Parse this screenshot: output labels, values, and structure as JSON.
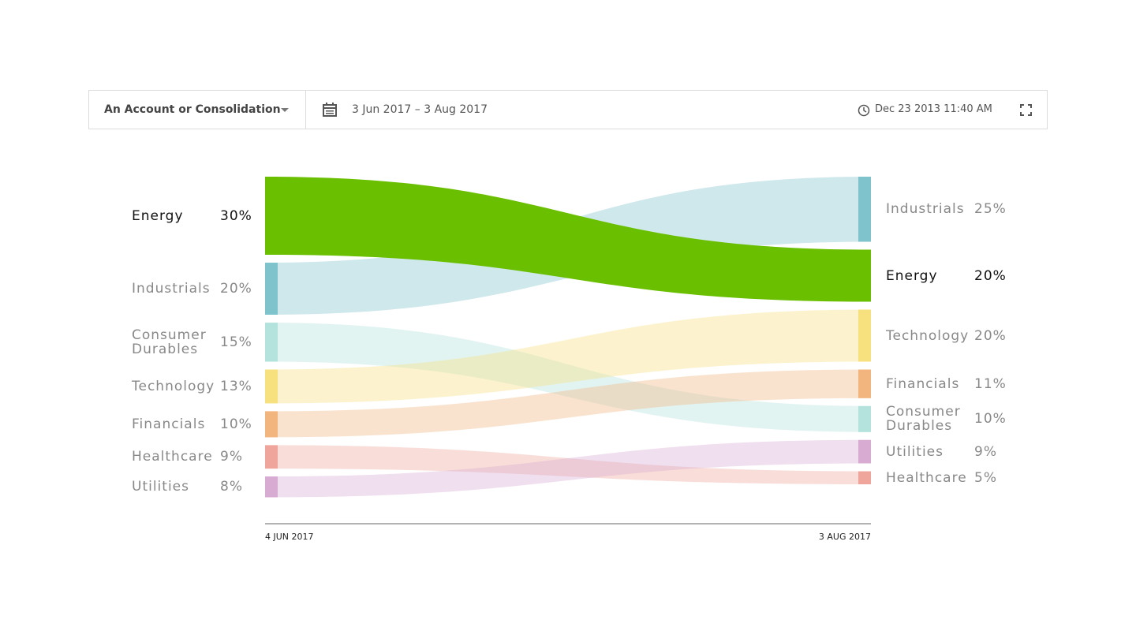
{
  "toolbar": {
    "account": "An Account or Consolidation",
    "date_range": "3 Jun 2017 – 3 Aug 2017",
    "timestamp": "Dec 23 2013 11:40 AM"
  },
  "chart_data": {
    "type": "sankey",
    "x": [
      "4 JUN 2017",
      "3 AUG 2017"
    ],
    "series": [
      {
        "name": "Energy",
        "color": "#6abf00",
        "highlighted": true,
        "values": [
          30,
          20
        ],
        "value_labels": [
          "30%",
          "20%"
        ]
      },
      {
        "name": "Industrials",
        "color": "#7fc3cc",
        "values": [
          20,
          25
        ],
        "value_labels": [
          "20%",
          "25%"
        ]
      },
      {
        "name": "Consumer Durables",
        "color": "#b3e3dc",
        "values": [
          15,
          10
        ],
        "value_labels": [
          "15%",
          "10%"
        ]
      },
      {
        "name": "Technology",
        "color": "#f7e07e",
        "values": [
          13,
          20
        ],
        "value_labels": [
          "13%",
          "20%"
        ]
      },
      {
        "name": "Financials",
        "color": "#f2b57e",
        "values": [
          10,
          11
        ],
        "value_labels": [
          "10%",
          "11%"
        ]
      },
      {
        "name": "Healthcare",
        "color": "#efa59c",
        "values": [
          9,
          5
        ],
        "value_labels": [
          "9%",
          "5%"
        ]
      },
      {
        "name": "Utilities",
        "color": "#d8abd2",
        "values": [
          8,
          9
        ],
        "value_labels": [
          "8%",
          "9%"
        ]
      }
    ]
  }
}
